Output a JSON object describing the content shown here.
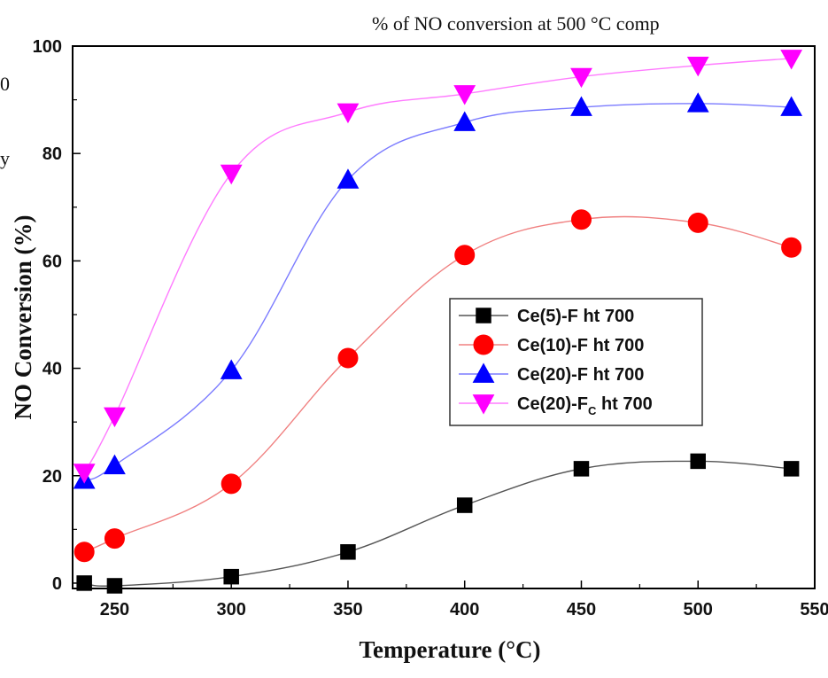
{
  "background_text": {
    "top": "% of NO conversion at 500 °C comp",
    "left_line_1": "0",
    "left_line_2": "y"
  },
  "chart_data": {
    "type": "line",
    "title": "",
    "xlabel": "Temperature (°C)",
    "ylabel": "NO Conversion (%)",
    "xlim": [
      232,
      550
    ],
    "ylim": [
      -1,
      100
    ],
    "xticks": [
      250,
      300,
      350,
      400,
      450,
      500,
      550
    ],
    "yticks": [
      0,
      20,
      40,
      60,
      80,
      100
    ],
    "grid": false,
    "legend_position": "center-right",
    "series": [
      {
        "name": "Ce(5)-F ht 700",
        "name_main": "Ce(5)-F ht 700",
        "name_sub": "",
        "name_tail": "",
        "marker": "square",
        "marker_color": "#000000",
        "line_color": "#555555",
        "x": [
          237,
          250,
          300,
          350,
          400,
          450,
          500,
          540
        ],
        "y": [
          0,
          -0.5,
          1.2,
          5.8,
          14.5,
          21.3,
          22.7,
          21.3
        ]
      },
      {
        "name": "Ce(10)-F ht 700",
        "name_main": "Ce(10)-F ht 700",
        "name_sub": "",
        "name_tail": "",
        "marker": "circle",
        "marker_color": "#ff0000",
        "line_color": "#f08080",
        "x": [
          237,
          250,
          300,
          350,
          400,
          450,
          500,
          540
        ],
        "y": [
          5.8,
          8.3,
          18.5,
          41.9,
          61.1,
          67.7,
          67.1,
          62.5
        ]
      },
      {
        "name": "Ce(20)-F ht 700",
        "name_main": "Ce(20)-F ht 700",
        "name_sub": "",
        "name_tail": "",
        "marker": "triangle-up",
        "marker_color": "#0000ff",
        "line_color": "#7b7bff",
        "x": [
          237,
          250,
          300,
          350,
          400,
          450,
          500,
          540
        ],
        "y": [
          19.2,
          21.9,
          39.6,
          75.1,
          85.8,
          88.6,
          89.3,
          88.6
        ]
      },
      {
        "name": "Ce(20)-FC ht 700",
        "name_main": "Ce(20)-F",
        "name_sub": "C",
        "name_tail": " ht 700",
        "marker": "triangle-down",
        "marker_color": "#ff00ff",
        "line_color": "#ff7bff",
        "x": [
          237,
          250,
          300,
          350,
          400,
          450,
          500,
          540
        ],
        "y": [
          20.6,
          31.1,
          76.3,
          87.7,
          91.1,
          94.3,
          96.4,
          97.7
        ]
      }
    ]
  }
}
